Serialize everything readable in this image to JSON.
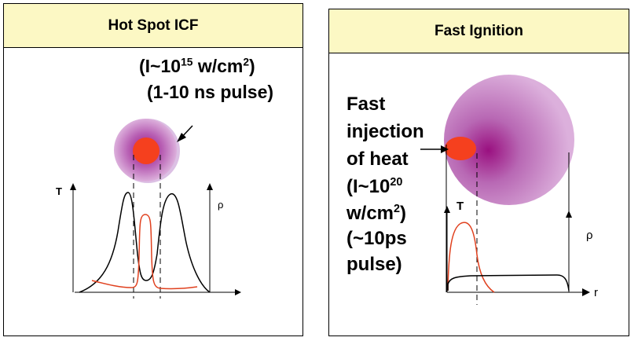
{
  "left_panel": {
    "title": "Hot Spot ICF",
    "intensity_prefix": "(I~10",
    "intensity_exp": "15",
    "intensity_mid": " w/cm",
    "intensity_unit_exp": "2",
    "intensity_suffix": ")",
    "pulse": "(1-10 ns pulse)",
    "y_left_label": "T",
    "y_right_label": "ρ"
  },
  "right_panel": {
    "title": "Fast Ignition",
    "line1": "Fast",
    "line2": "injection",
    "line3": "of heat",
    "line4_prefix": "(I~10",
    "line4_exp": "20",
    "line5_prefix": "w/cm",
    "line5_exp": "2",
    "line5_suffix": ")",
    "line6": "(~10ps",
    "line7": "pulse)",
    "y_left_label": "T",
    "y_right_label": "ρ",
    "x_label": "r"
  },
  "colors": {
    "header_bg": "#fcf8c4",
    "hot_spot": "#f5401e",
    "plasma_center": "#9a1080",
    "plasma_edge": "#d9a8d8",
    "temperature_curve": "#e0401e",
    "density_curve": "#000000"
  },
  "icons": [
    "arrow-icon",
    "injection-arrow-icon"
  ]
}
